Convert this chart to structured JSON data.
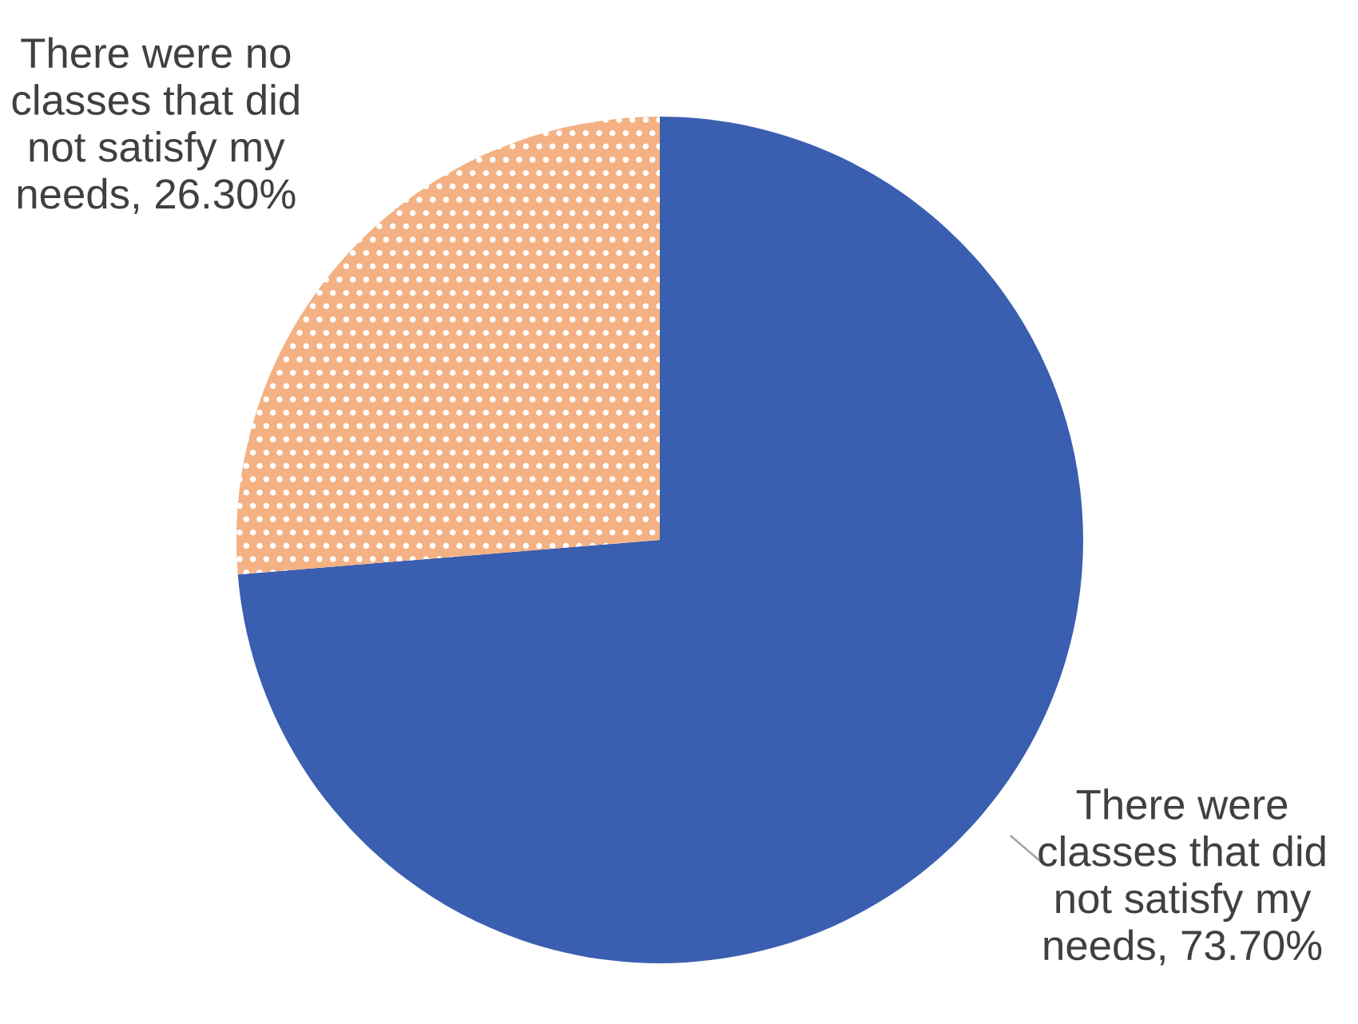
{
  "chart_data": {
    "type": "pie",
    "categories": [
      "There were\nclasses that did\nnot satisfy my\nneeds",
      "There were no\nclasses that did\nnot satisfy my\nneeds"
    ],
    "values": [
      73.7,
      26.3
    ],
    "value_labels": [
      "73.70%",
      "26.30%"
    ],
    "colors": [
      "#3a5eb0",
      "#f4b183"
    ],
    "legend": false
  }
}
